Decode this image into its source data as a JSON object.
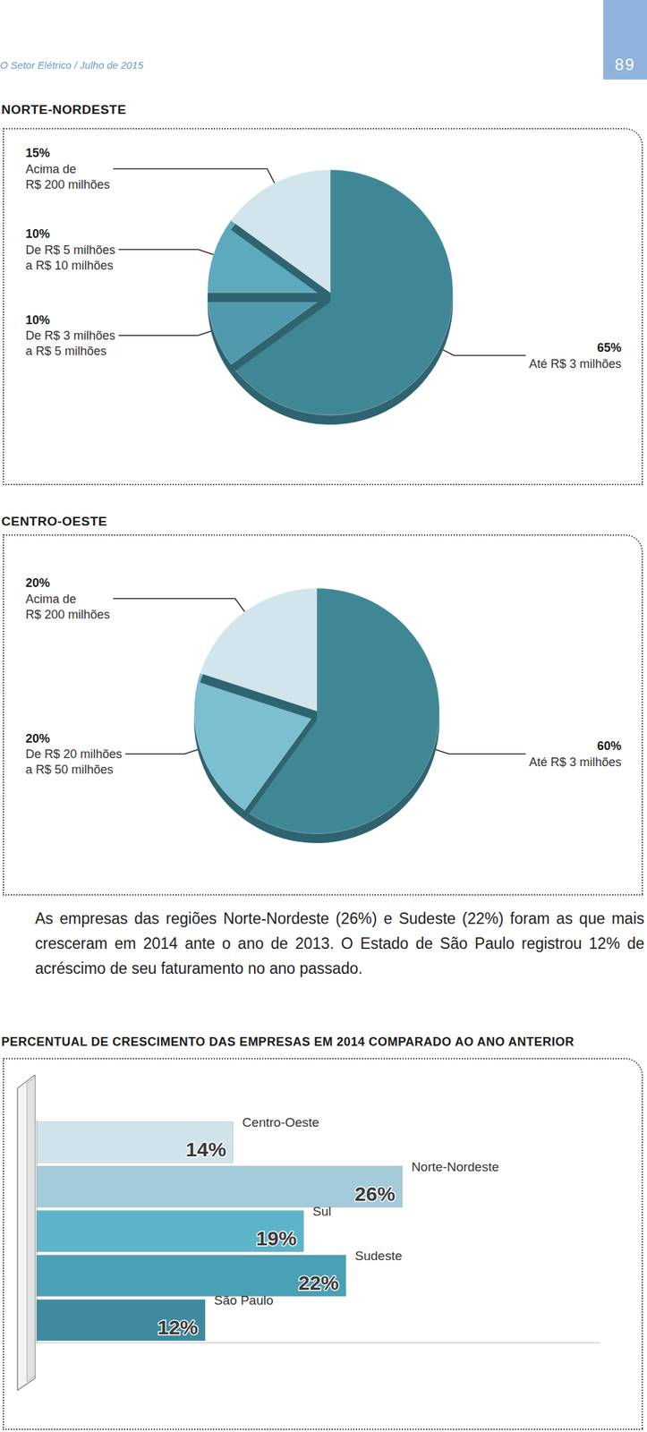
{
  "page": {
    "header": "O Setor Elétrico / Julho de 2015",
    "page_number": "89",
    "paragraph": "As empresas das regiões Norte-Nordeste (26%) e Sudeste (22%) foram as que mais cresceram em 2014 ante o ano de 2013. O Estado de São Paulo registrou 12% de acréscimo de seu faturamento no ano passado."
  },
  "chart_data": [
    {
      "type": "pie",
      "title": "NORTE-NORDESTE",
      "categories": [
        "Até R$ 3 milhões",
        "De R$ 3 milhões\na R$ 5 milhões",
        "De R$ 5 milhões\na R$ 10 milhões",
        "Acima de\nR$ 200 milhões"
      ],
      "values": [
        65,
        10,
        10,
        15
      ],
      "value_labels": [
        "65%",
        "10%",
        "10%",
        "15%"
      ],
      "colors": [
        "#3f8796",
        "#4f9aad",
        "#5daabf",
        "#d2e5ec"
      ],
      "data_labels": true
    },
    {
      "type": "pie",
      "title": "CENTRO-OESTE",
      "categories": [
        "Até R$ 3 milhões",
        "De R$ 20 milhões\na R$ 50 milhões",
        "Acima de\nR$ 200 milhões"
      ],
      "values": [
        60,
        20,
        20
      ],
      "value_labels": [
        "60%",
        "20%",
        "20%"
      ],
      "colors": [
        "#3f8796",
        "#7cbfd1",
        "#d2e5ec"
      ],
      "data_labels": true
    },
    {
      "type": "bar",
      "title": "PERCENTUAL DE CRESCIMENTO DAS EMPRESAS EM 2014 COMPARADO AO ANO ANTERIOR",
      "orientation": "horizontal",
      "categories": [
        "Centro-Oeste",
        "Norte-Nordeste",
        "Sul",
        "Sudeste",
        "São Paulo"
      ],
      "values": [
        14,
        26,
        19,
        22,
        12
      ],
      "value_labels": [
        "14%",
        "26%",
        "19%",
        "22%",
        "12%"
      ],
      "colors": [
        "#d0e3eb",
        "#a4cbd9",
        "#5db4c9",
        "#4aa0b5",
        "#3f8a9f"
      ],
      "xlim": [
        0,
        40
      ],
      "tick_labels": false,
      "grid": false,
      "data_labels": true
    }
  ]
}
